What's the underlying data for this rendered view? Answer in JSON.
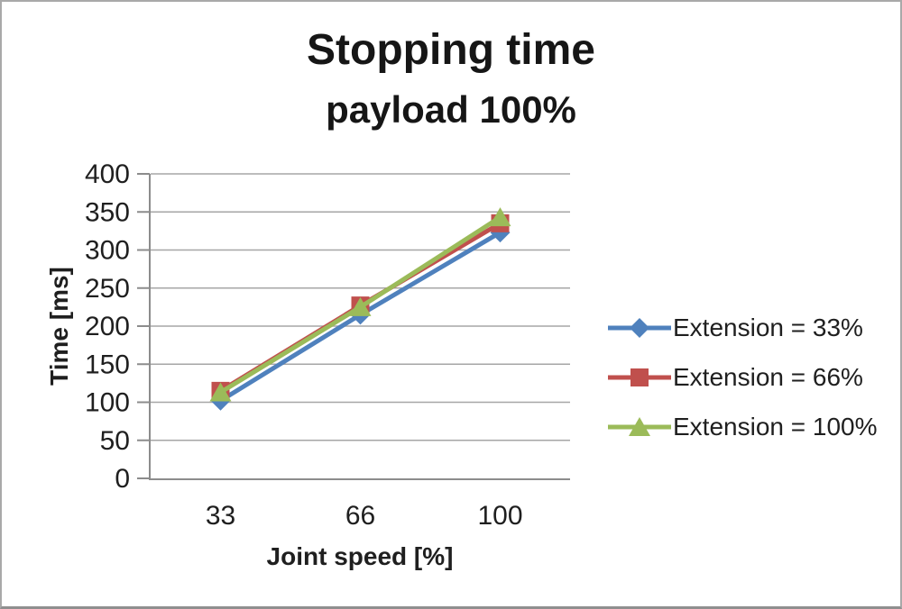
{
  "chart_data": {
    "type": "line",
    "title": "Stopping time",
    "subtitle": "payload 100%",
    "xlabel": "Joint speed [%]",
    "ylabel": "Time [ms]",
    "categories": [
      "33",
      "66",
      "100"
    ],
    "x_axis_type": "category",
    "ylim": [
      0,
      400
    ],
    "ytick_step": 50,
    "yticks": [
      0,
      50,
      100,
      150,
      200,
      250,
      300,
      350,
      400
    ],
    "grid": true,
    "legend_position": "right",
    "series": [
      {
        "name": "Extension = 33%",
        "marker": "diamond",
        "color": "#4F81BD",
        "values": [
          102,
          215,
          323
        ]
      },
      {
        "name": "Extension = 66%",
        "marker": "square",
        "color": "#C0504D",
        "values": [
          115,
          227,
          335
        ]
      },
      {
        "name": "Extension = 100%",
        "marker": "triangle",
        "color": "#9BBB59",
        "values": [
          113,
          225,
          343
        ]
      }
    ],
    "gridline_color": "#A6A6A6",
    "axis_color": "#8C8C8C",
    "text_color": "#1F1F1F"
  }
}
